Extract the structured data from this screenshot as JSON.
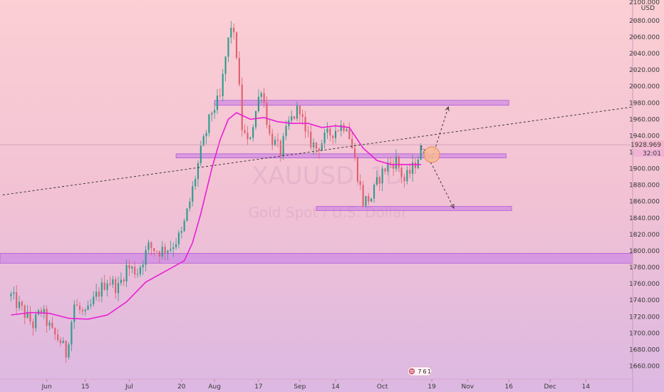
{
  "chart_data": {
    "type": "candlestick",
    "symbol_watermark": "XAUUSD, 1D",
    "watermark_subtitle": "Gold Spot / U.S. Dollar",
    "currency": "USD",
    "y_ticks": [
      1660,
      1680,
      1700,
      1720,
      1740,
      1760,
      1780,
      1800,
      1820,
      1840,
      1860,
      1880,
      1900,
      1920,
      1940,
      1960,
      1980,
      2000,
      2020,
      2040,
      2060,
      2080
    ],
    "y_tick_labels": [
      "1660.000",
      "1680.000",
      "1700.000",
      "1720.000",
      "1740.000",
      "1760.000",
      "1780.000",
      "1800.000",
      "1820.000",
      "1840.000",
      "1860.000",
      "1880.000",
      "1900.000",
      "1920.000",
      "1940.000",
      "1960.000",
      "1980.000",
      "2000.000",
      "2020.000",
      "2040.000",
      "2060.000",
      "2080.000"
    ],
    "y_top_label": "2100.000",
    "ylim": [
      1644,
      2105
    ],
    "x_labels": [
      "Jun",
      "15",
      "Jul",
      "20",
      "Aug",
      "17",
      "Sep",
      "14",
      "Oct",
      "19",
      "Nov",
      "16",
      "Dec",
      "14"
    ],
    "x_label_dates": [
      "2020-06-01",
      "2020-06-15",
      "2020-07-01",
      "2020-07-20",
      "2020-08-01",
      "2020-08-17",
      "2020-09-01",
      "2020-09-14",
      "2020-10-01",
      "2020-10-19",
      "2020-11-01",
      "2020-11-16",
      "2020-12-01",
      "2020-12-14"
    ],
    "last_price": "1928.969",
    "countdown": "32:01",
    "event_badge": {
      "icon": "flag-icon",
      "count_a": "7",
      "count_b": "6",
      "count_c": "1"
    },
    "price_path": [
      [
        "2020-05-19",
        1745
      ],
      [
        "2020-05-23",
        1728
      ],
      [
        "2020-05-27",
        1710
      ],
      [
        "2020-05-30",
        1728
      ],
      [
        "2020-06-03",
        1700
      ],
      [
        "2020-06-06",
        1690
      ],
      [
        "2020-06-08",
        1675
      ],
      [
        "2020-06-11",
        1735
      ],
      [
        "2020-06-15",
        1720
      ],
      [
        "2020-06-19",
        1745
      ],
      [
        "2020-06-23",
        1765
      ],
      [
        "2020-06-27",
        1755
      ],
      [
        "2020-06-30",
        1780
      ],
      [
        "2020-07-04",
        1775
      ],
      [
        "2020-07-08",
        1805
      ],
      [
        "2020-07-12",
        1800
      ],
      [
        "2020-07-16",
        1805
      ],
      [
        "2020-07-20",
        1820
      ],
      [
        "2020-07-23",
        1860
      ],
      [
        "2020-07-27",
        1920
      ],
      [
        "2020-07-31",
        1970
      ],
      [
        "2020-08-03",
        1985
      ],
      [
        "2020-08-05",
        2035
      ],
      [
        "2020-08-07",
        2075
      ],
      [
        "2020-08-09",
        2040
      ],
      [
        "2020-08-11",
        1950
      ],
      [
        "2020-08-13",
        1930
      ],
      [
        "2020-08-15",
        1955
      ],
      [
        "2020-08-18",
        2000
      ],
      [
        "2020-08-21",
        1940
      ],
      [
        "2020-08-25",
        1920
      ],
      [
        "2020-08-28",
        1955
      ],
      [
        "2020-09-01",
        1975
      ],
      [
        "2020-09-03",
        1940
      ],
      [
        "2020-09-07",
        1925
      ],
      [
        "2020-09-11",
        1940
      ],
      [
        "2020-09-15",
        1950
      ],
      [
        "2020-09-18",
        1955
      ],
      [
        "2020-09-21",
        1910
      ],
      [
        "2020-09-24",
        1860
      ],
      [
        "2020-09-27",
        1865
      ],
      [
        "2020-09-30",
        1890
      ],
      [
        "2020-10-03",
        1905
      ],
      [
        "2020-10-06",
        1910
      ],
      [
        "2020-10-09",
        1885
      ],
      [
        "2020-10-12",
        1900
      ],
      [
        "2020-10-15",
        1922
      ]
    ],
    "moving_average_path": [
      [
        "2020-05-19",
        1722
      ],
      [
        "2020-05-26",
        1725
      ],
      [
        "2020-06-02",
        1724
      ],
      [
        "2020-06-09",
        1718
      ],
      [
        "2020-06-16",
        1717
      ],
      [
        "2020-06-23",
        1722
      ],
      [
        "2020-06-30",
        1738
      ],
      [
        "2020-07-07",
        1762
      ],
      [
        "2020-07-14",
        1775
      ],
      [
        "2020-07-21",
        1788
      ],
      [
        "2020-07-24",
        1810
      ],
      [
        "2020-07-27",
        1845
      ],
      [
        "2020-07-31",
        1900
      ],
      [
        "2020-08-03",
        1935
      ],
      [
        "2020-08-06",
        1960
      ],
      [
        "2020-08-09",
        1968
      ],
      [
        "2020-08-14",
        1960
      ],
      [
        "2020-08-19",
        1962
      ],
      [
        "2020-08-24",
        1957
      ],
      [
        "2020-08-29",
        1955
      ],
      [
        "2020-09-04",
        1955
      ],
      [
        "2020-09-09",
        1950
      ],
      [
        "2020-09-14",
        1952
      ],
      [
        "2020-09-19",
        1950
      ],
      [
        "2020-09-24",
        1925
      ],
      [
        "2020-09-29",
        1910
      ],
      [
        "2020-10-04",
        1905
      ],
      [
        "2020-10-09",
        1905
      ],
      [
        "2020-10-15",
        1905
      ]
    ],
    "zones": [
      {
        "name": "zone-1980",
        "from": "2020-08-01",
        "to": "2020-11-16",
        "low": 1977,
        "high": 1983
      },
      {
        "name": "zone-1917",
        "from": "2020-07-18",
        "to": "2020-11-15",
        "low": 1913,
        "high": 1918
      },
      {
        "name": "zone-1852",
        "from": "2020-09-07",
        "to": "2020-11-17",
        "low": 1849,
        "high": 1854
      },
      {
        "name": "zone-1790",
        "from": "2020-05-15",
        "to": "2020-12-31",
        "low": 1785,
        "high": 1797
      }
    ],
    "trendline": {
      "from": [
        "2020-05-16",
        1868
      ],
      "to": [
        "2020-12-31",
        1975
      ]
    },
    "scenarios": [
      {
        "name": "scenario-up",
        "points": [
          [
            "2020-10-15",
            1928
          ],
          [
            "2020-10-19",
            1912
          ],
          [
            "2020-10-25",
            1975
          ]
        ]
      },
      {
        "name": "scenario-down",
        "points": [
          [
            "2020-10-15",
            1925
          ],
          [
            "2020-10-19",
            1905
          ],
          [
            "2020-10-27",
            1852
          ]
        ]
      }
    ],
    "highlight_circle": {
      "date": "2020-10-19",
      "price": 1917
    },
    "last_price_value": 1928.969
  }
}
